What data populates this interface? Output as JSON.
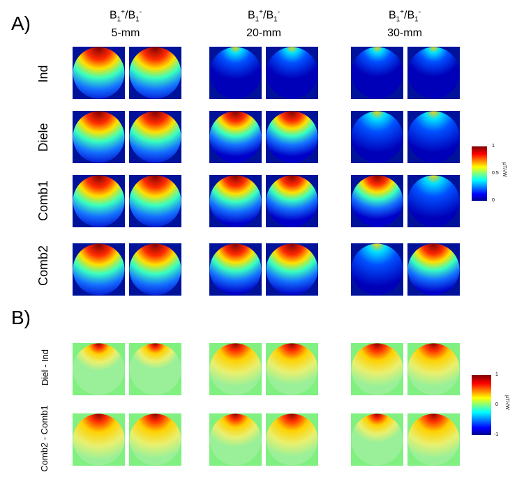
{
  "panels": [
    {
      "label": "A)",
      "columns": [
        {
          "title_main": "B",
          "sub1": "1",
          "sup1": "+",
          "slash": "/",
          "sub2": "1",
          "sup2": "-",
          "thickness": "5-mm"
        },
        {
          "title_main": "B",
          "sub1": "1",
          "sup1": "+",
          "slash": "/",
          "sub2": "1",
          "sup2": "-",
          "thickness": "20-mm"
        },
        {
          "title_main": "B",
          "sub1": "1",
          "sup1": "+",
          "slash": "/",
          "sub2": "1",
          "sup2": "-",
          "thickness": "30-mm"
        }
      ],
      "rows": [
        "Ind",
        "Diele",
        "Comb1",
        "Comb2"
      ],
      "colorbar": {
        "min": "0",
        "mid": "0.5",
        "max": "1",
        "unit": "μT/√W",
        "scheme": "jet"
      }
    },
    {
      "label": "B)",
      "rows": [
        "Diel - Ind",
        "Comb2 - Comb1"
      ],
      "colorbar": {
        "min": "-1",
        "mid": "0",
        "max": "1",
        "unit": "μT/√W",
        "scheme": "jet-diverging"
      }
    }
  ],
  "colors": {
    "background_a": "#000f94",
    "background_b": "#7df07d",
    "hot": "#8b0000",
    "cold": "#00008f"
  }
}
